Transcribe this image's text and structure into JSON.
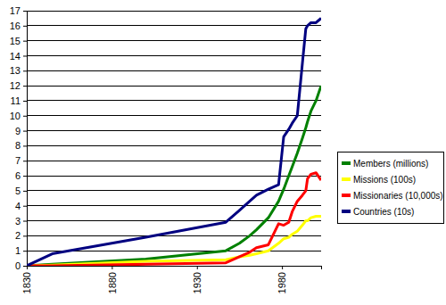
{
  "chart_data": {
    "type": "line",
    "x": [
      1830,
      1845,
      1900,
      1947,
      1955,
      1961,
      1965,
      1972,
      1978,
      1981,
      1984,
      1986,
      1989,
      1992,
      1994,
      1995,
      1997,
      2000,
      2003
    ],
    "series": [
      {
        "name": "Members (millions)",
        "color": "#008000",
        "values": [
          0,
          0.1,
          0.45,
          1.0,
          1.5,
          2.0,
          2.4,
          3.2,
          4.3,
          5.1,
          6.0,
          6.6,
          7.5,
          8.5,
          9.2,
          9.6,
          10.3,
          11.0,
          12.0
        ]
      },
      {
        "name": "Missions (100s)",
        "color": "#ffff00",
        "values": [
          0,
          0.05,
          0.3,
          0.4,
          0.6,
          0.7,
          0.8,
          1.0,
          1.5,
          1.8,
          1.9,
          2.1,
          2.3,
          2.7,
          3.0,
          3.0,
          3.2,
          3.3,
          3.3
        ]
      },
      {
        "name": "Missionaries (10,000s)",
        "color": "#ff0000",
        "values": [
          0,
          0,
          0.1,
          0.2,
          0.6,
          0.9,
          1.2,
          1.4,
          2.8,
          2.7,
          2.9,
          3.6,
          4.3,
          4.7,
          5.0,
          5.8,
          6.1,
          6.2,
          5.7
        ]
      },
      {
        "name": "Countries (10s)",
        "color": "#000080",
        "values": [
          0,
          0.8,
          1.9,
          2.9,
          3.7,
          4.3,
          4.7,
          5.1,
          5.4,
          8.6,
          9.1,
          9.5,
          10.0,
          13.5,
          15.8,
          16.0,
          16.2,
          16.2,
          16.5
        ]
      }
    ],
    "xlim": [
      1830,
      2003
    ],
    "xticks": [
      1830,
      1880,
      1930,
      1980
    ],
    "ylim": [
      0,
      17
    ],
    "yticks": [
      0,
      1,
      2,
      3,
      4,
      5,
      6,
      7,
      8,
      9,
      10,
      11,
      12,
      13,
      14,
      15,
      16,
      17
    ],
    "grid": true,
    "legend": "right"
  }
}
